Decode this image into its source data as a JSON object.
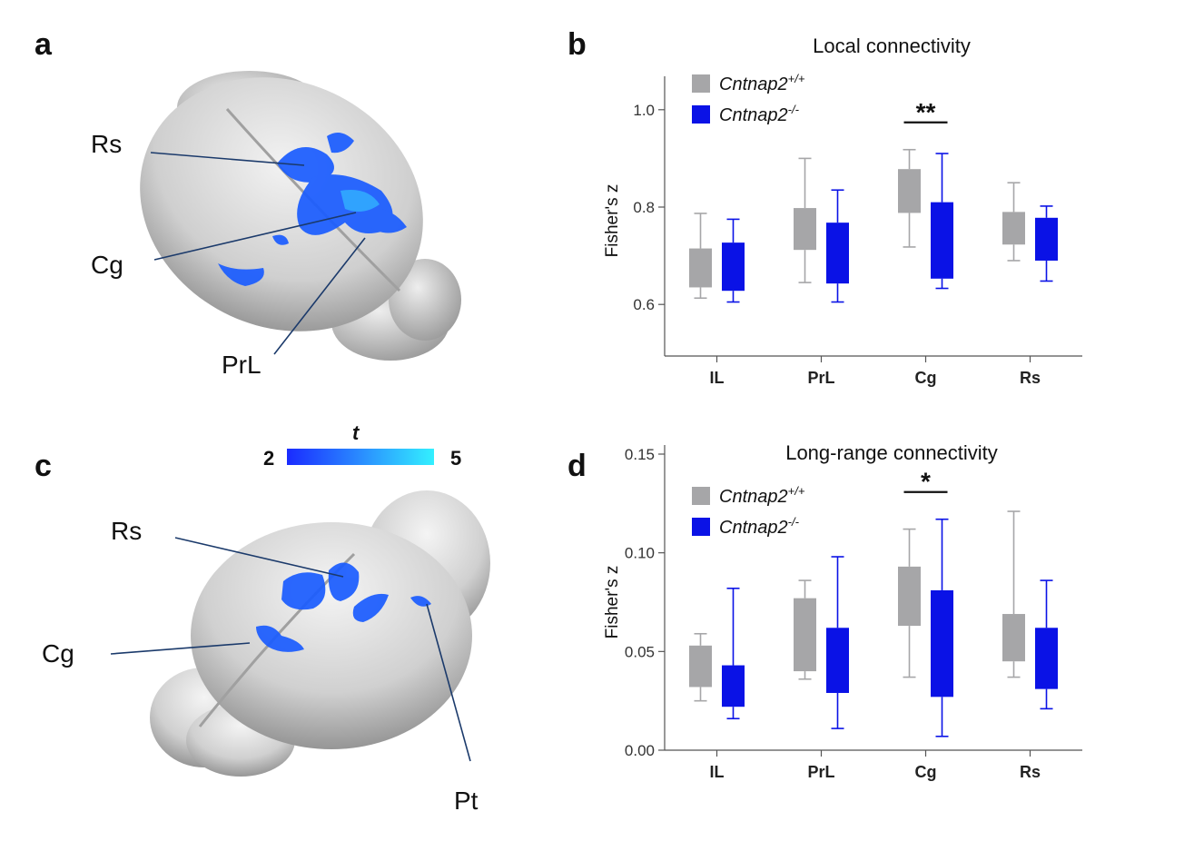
{
  "panels": {
    "a": {
      "letter": "a",
      "labels": {
        "rs": "Rs",
        "cg": "Cg",
        "prl": "PrL"
      }
    },
    "b": {
      "letter": "b"
    },
    "c": {
      "letter": "c",
      "labels": {
        "rs": "Rs",
        "cg": "Cg",
        "pt": "Pt"
      }
    },
    "d": {
      "letter": "d"
    }
  },
  "colorbar": {
    "symbol": "t",
    "min_label": "2",
    "max_label": "5",
    "colors": [
      "#1a2bff",
      "#2a8cff",
      "#33f0ff"
    ]
  },
  "colors": {
    "wildtype": "#a6a6a8",
    "knockout": "#0a12e6",
    "brain": "#d6d6d6",
    "cluster": "#1a5cff",
    "leader": "#1b3a6b"
  },
  "chart_data": [
    {
      "type": "box",
      "title": "Local connectivity",
      "ylabel": "Fisher's z",
      "xlabel": "",
      "ylim": [
        0.55,
        1.05
      ],
      "yticks": [
        "0.6",
        "0.8",
        "1.0"
      ],
      "ytick_values": [
        0.6,
        0.8,
        1.0
      ],
      "categories": [
        "IL",
        "PrL",
        "Cg",
        "Rs"
      ],
      "legend_position": "top-left",
      "series": [
        {
          "name": "Cntnap2",
          "superscript": "+/+",
          "color": "#a6a6a8",
          "boxes": [
            {
              "min": 0.613,
              "q1": 0.635,
              "q3": 0.715,
              "max": 0.787
            },
            {
              "min": 0.645,
              "q1": 0.712,
              "q3": 0.798,
              "max": 0.9
            },
            {
              "min": 0.718,
              "q1": 0.788,
              "q3": 0.878,
              "max": 0.918
            },
            {
              "min": 0.69,
              "q1": 0.723,
              "q3": 0.79,
              "max": 0.85
            }
          ]
        },
        {
          "name": "Cntnap2",
          "superscript": "-/-",
          "color": "#0a12e6",
          "boxes": [
            {
              "min": 0.605,
              "q1": 0.628,
              "q3": 0.727,
              "max": 0.775
            },
            {
              "min": 0.605,
              "q1": 0.643,
              "q3": 0.768,
              "max": 0.835
            },
            {
              "min": 0.633,
              "q1": 0.653,
              "q3": 0.81,
              "max": 0.91
            },
            {
              "min": 0.648,
              "q1": 0.69,
              "q3": 0.778,
              "max": 0.802
            }
          ]
        }
      ],
      "annotations": [
        {
          "category": "Cg",
          "text": "**"
        }
      ]
    },
    {
      "type": "box",
      "title": "Long-range connectivity",
      "ylabel": "Fisher's z",
      "xlabel": "",
      "ylim": [
        0.0,
        0.15
      ],
      "yticks": [
        "0.00",
        "0.05",
        "0.10",
        "0.15"
      ],
      "ytick_values": [
        0.0,
        0.05,
        0.1,
        0.15
      ],
      "categories": [
        "IL",
        "PrL",
        "Cg",
        "Rs"
      ],
      "legend_position": "top-left",
      "series": [
        {
          "name": "Cntnap2",
          "superscript": "+/+",
          "color": "#a6a6a8",
          "boxes": [
            {
              "min": 0.025,
              "q1": 0.032,
              "q3": 0.053,
              "max": 0.059
            },
            {
              "min": 0.036,
              "q1": 0.04,
              "q3": 0.077,
              "max": 0.086
            },
            {
              "min": 0.037,
              "q1": 0.063,
              "q3": 0.093,
              "max": 0.112
            },
            {
              "min": 0.037,
              "q1": 0.045,
              "q3": 0.069,
              "max": 0.121
            }
          ]
        },
        {
          "name": "Cntnap2",
          "superscript": "-/-",
          "color": "#0a12e6",
          "boxes": [
            {
              "min": 0.016,
              "q1": 0.022,
              "q3": 0.043,
              "max": 0.082
            },
            {
              "min": 0.011,
              "q1": 0.029,
              "q3": 0.062,
              "max": 0.098
            },
            {
              "min": 0.007,
              "q1": 0.027,
              "q3": 0.081,
              "max": 0.117
            },
            {
              "min": 0.021,
              "q1": 0.031,
              "q3": 0.062,
              "max": 0.086
            }
          ]
        }
      ],
      "annotations": [
        {
          "category": "Cg",
          "text": "*"
        }
      ]
    }
  ]
}
